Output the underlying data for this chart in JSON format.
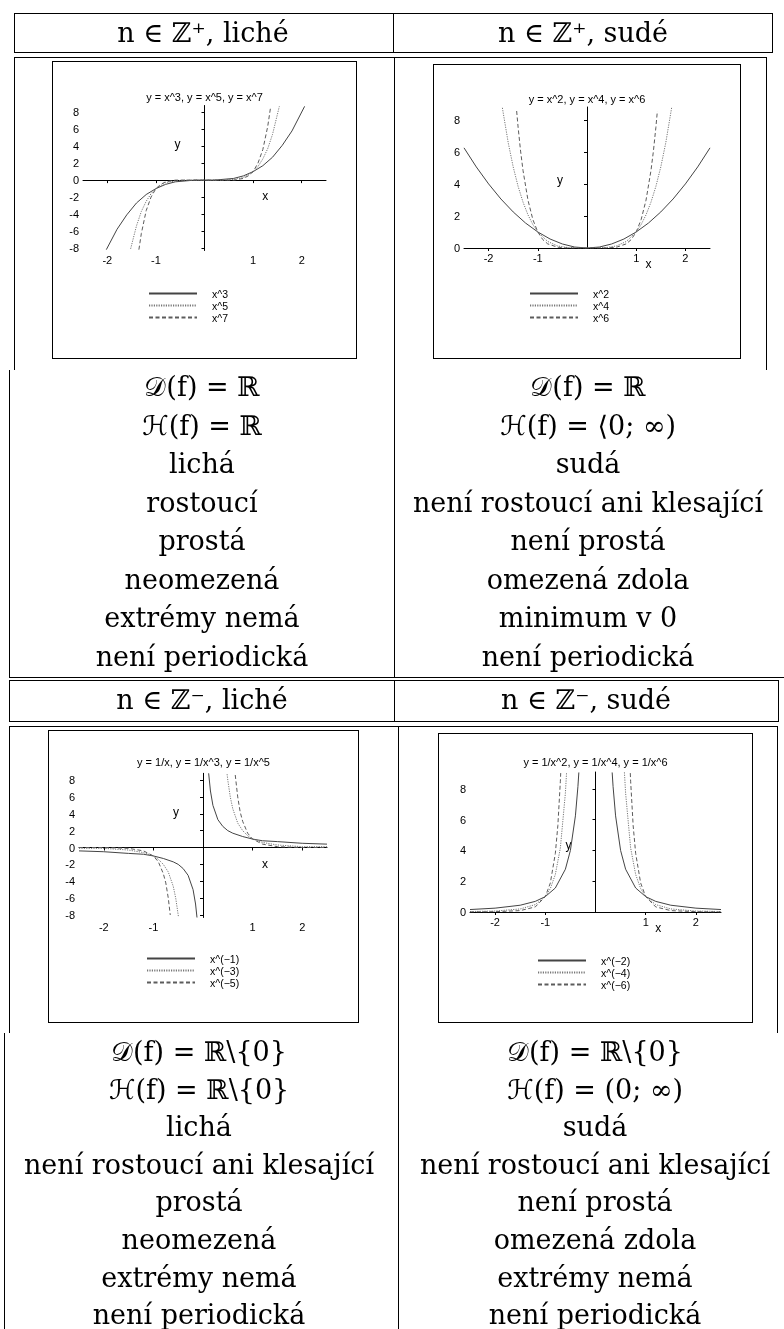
{
  "chart_data": [
    {
      "type": "line",
      "title": "n ∈ ℤ⁺, liché",
      "subtitle": "y = x^3, y = x^5, y = x^7",
      "xlabel": "x",
      "ylabel": "y",
      "xlim": [
        -2.5,
        2.5
      ],
      "ylim": [
        -8.3,
        8.8
      ],
      "xticks": [
        -2,
        -1,
        1,
        2
      ],
      "yticks": [
        -8,
        -6,
        -4,
        -2,
        0,
        2,
        4,
        6,
        8
      ],
      "legend": "bottom",
      "series": [
        {
          "name": "x^3",
          "color": "#444444",
          "line_style": "solid",
          "x": [
            -2.02,
            -1.8,
            -1.6,
            -1.4,
            -1.2,
            -1,
            -0.8,
            -0.6,
            -0.4,
            -0.2,
            0,
            0.2,
            0.4,
            0.6,
            0.8,
            1,
            1.2,
            1.4,
            1.6,
            1.8,
            2.06
          ],
          "values": [
            -8.2,
            -5.8,
            -4.1,
            -2.7,
            -1.7,
            -1,
            -0.5,
            -0.2,
            -0.1,
            0,
            0,
            0,
            0.1,
            0.2,
            0.5,
            1,
            1.7,
            2.7,
            4.1,
            5.8,
            8.7
          ]
        },
        {
          "name": "x^5",
          "color": "#777777",
          "line_style": "dotted",
          "x": [
            -1.52,
            -1.4,
            -1.3,
            -1.2,
            -1.1,
            -1,
            -0.8,
            -0.6,
            -0.4,
            0,
            0.4,
            0.6,
            0.8,
            1,
            1.1,
            1.2,
            1.3,
            1.4,
            1.54
          ],
          "values": [
            -8.1,
            -5.4,
            -3.7,
            -2.5,
            -1.6,
            -1,
            -0.3,
            -0.1,
            0,
            0,
            0,
            0.1,
            0.3,
            1,
            1.6,
            2.5,
            3.7,
            5.4,
            8.7
          ]
        },
        {
          "name": "x^7",
          "color": "#5c5c5c",
          "line_style": "dashed",
          "x": [
            -1.35,
            -1.3,
            -1.2,
            -1.1,
            -1,
            -0.9,
            -0.8,
            -0.6,
            0,
            0.6,
            0.8,
            0.9,
            1,
            1.1,
            1.2,
            1.3,
            1.36
          ],
          "values": [
            -8.2,
            -6.3,
            -3.6,
            -2,
            -1,
            -0.5,
            -0.2,
            0,
            0,
            0,
            0.2,
            0.5,
            1,
            2,
            3.6,
            6.3,
            8.6
          ]
        }
      ],
      "annotations": [
        "𝒟(f) = ℝ",
        "ℋ(f) = ℝ",
        "lichá",
        "rostoucí",
        "prostá",
        "neomezená",
        "extrémy nemá",
        "není periodická"
      ]
    },
    {
      "type": "line",
      "title": "n ∈ ℤ⁺, sudé",
      "subtitle": "y = x^2, y = x^4, y = x^6",
      "xlabel": "x",
      "ylabel": "y",
      "xlim": [
        -2.5,
        2.5
      ],
      "ylim": [
        0,
        8.8
      ],
      "xticks": [
        -2,
        -1,
        1,
        2
      ],
      "yticks": [
        0,
        2,
        4,
        6,
        8
      ],
      "legend": "bottom",
      "series": [
        {
          "name": "x^2",
          "color": "#444444",
          "line_style": "solid",
          "x": [
            -2.5,
            -2.25,
            -2,
            -1.75,
            -1.5,
            -1.25,
            -1,
            -0.75,
            -0.5,
            -0.25,
            0,
            0.25,
            0.5,
            0.75,
            1,
            1.25,
            1.5,
            1.75,
            2,
            2.25,
            2.5
          ],
          "values": [
            6.25,
            5.06,
            4,
            3.06,
            2.25,
            1.56,
            1,
            0.56,
            0.25,
            0.06,
            0,
            0.06,
            0.25,
            0.56,
            1,
            1.56,
            2.25,
            3.06,
            4,
            5.06,
            6.25
          ]
        },
        {
          "name": "x^4",
          "color": "#777777",
          "line_style": "dotted",
          "x": [
            -1.72,
            -1.6,
            -1.5,
            -1.4,
            -1.3,
            -1.2,
            -1.1,
            -1,
            -0.8,
            -0.6,
            -0.4,
            0,
            0.4,
            0.6,
            0.8,
            1,
            1.1,
            1.2,
            1.3,
            1.4,
            1.5,
            1.6,
            1.72
          ],
          "values": [
            8.75,
            6.55,
            5.06,
            3.84,
            2.86,
            2.07,
            1.46,
            1,
            0.41,
            0.13,
            0.03,
            0,
            0.03,
            0.13,
            0.41,
            1,
            1.46,
            2.07,
            2.86,
            3.84,
            5.06,
            6.55,
            8.75
          ]
        },
        {
          "name": "x^6",
          "color": "#5c5c5c",
          "line_style": "dashed",
          "x": [
            -1.43,
            -1.4,
            -1.35,
            -1.3,
            -1.2,
            -1.1,
            -1,
            -0.9,
            -0.8,
            -0.6,
            -0.4,
            0,
            0.4,
            0.6,
            0.8,
            0.9,
            1,
            1.1,
            1.2,
            1.3,
            1.35,
            1.4,
            1.43
          ],
          "values": [
            8.55,
            7.53,
            6.05,
            4.83,
            2.99,
            1.77,
            1,
            0.53,
            0.26,
            0.05,
            0,
            0,
            0,
            0.05,
            0.26,
            0.53,
            1,
            1.77,
            2.99,
            4.83,
            6.05,
            7.53,
            8.55
          ]
        }
      ],
      "annotations": [
        "𝒟(f) = ℝ",
        "ℋ(f) = ⟨0; ∞)",
        "sudá",
        "není rostoucí ani klesající",
        "není prostá",
        "omezená zdola",
        "minimum v 0",
        "není periodická"
      ]
    },
    {
      "type": "line",
      "title": "n ∈ ℤ⁻, liché",
      "subtitle": "y = 1/x, y = 1/x^3, y = 1/x^5",
      "xlabel": "x",
      "ylabel": "y",
      "xlim": [
        -2.5,
        2.5
      ],
      "ylim": [
        -8.3,
        8.8
      ],
      "xticks": [
        -2,
        -1,
        1,
        2
      ],
      "yticks": [
        -8,
        -6,
        -4,
        -2,
        0,
        2,
        4,
        6,
        8
      ],
      "legend": "bottom",
      "series": [
        {
          "name": "x^(−1)",
          "color": "#444444",
          "line_style": "solid",
          "x": [
            -2.5,
            -2,
            -1.5,
            -1.2,
            -1,
            -0.8,
            -0.6,
            -0.5,
            -0.4,
            -0.3,
            -0.2,
            -0.15,
            -0.121,
            0,
            0.114,
            0.15,
            0.2,
            0.3,
            0.4,
            0.5,
            0.6,
            0.8,
            1,
            1.2,
            1.5,
            2,
            2.5
          ],
          "values": [
            -0.4,
            -0.5,
            -0.7,
            -0.8,
            -1,
            -1.3,
            -1.7,
            -2,
            -2.5,
            -3.3,
            -5,
            -6.7,
            -8.3,
            null,
            8.8,
            6.7,
            5,
            3.3,
            2.5,
            2,
            1.7,
            1.3,
            1,
            0.8,
            0.7,
            0.5,
            0.4
          ]
        },
        {
          "name": "x^(−3)",
          "color": "#777777",
          "line_style": "dotted",
          "x": [
            -2.5,
            -2,
            -1.5,
            -1.2,
            -1,
            -0.9,
            -0.8,
            -0.7,
            -0.6,
            -0.55,
            -0.5,
            -0.495,
            0,
            0.486,
            0.5,
            0.55,
            0.6,
            0.7,
            0.8,
            0.9,
            1,
            1.2,
            1.5,
            2,
            2.5
          ],
          "values": [
            -0.1,
            -0.1,
            -0.3,
            -0.6,
            -1,
            -1.4,
            -2,
            -2.9,
            -4.6,
            -6,
            -8,
            -8.2,
            null,
            8.7,
            8,
            6,
            4.6,
            2.9,
            2,
            1.4,
            1,
            0.6,
            0.3,
            0.1,
            0.1
          ]
        },
        {
          "name": "x^(−5)",
          "color": "#5c5c5c",
          "line_style": "dashed",
          "x": [
            -2.5,
            -2,
            -1.5,
            -1.2,
            -1,
            -0.9,
            -0.8,
            -0.75,
            -0.7,
            -0.66,
            0,
            0.65,
            0.7,
            0.75,
            0.8,
            0.9,
            1,
            1.2,
            1.5,
            2,
            2.5
          ],
          "values": [
            0,
            0,
            -0.1,
            -0.4,
            -1,
            -1.7,
            -3.1,
            -4.2,
            -6,
            -8,
            null,
            8.6,
            6,
            4.2,
            3.1,
            1.7,
            1,
            0.4,
            0.1,
            0,
            0
          ]
        }
      ],
      "annotations": [
        "𝒟(f) = ℝ\\{0}",
        "ℋ(f) = ℝ\\{0}",
        "lichá",
        "není rostoucí ani klesající",
        "prostá",
        "neomezená",
        "extrémy nemá",
        "není periodická"
      ]
    },
    {
      "type": "line",
      "title": "n ∈ ℤ⁻, sudé",
      "subtitle": "y = 1/x^2, y = 1/x^4, y = 1/x^6",
      "xlabel": "x",
      "ylabel": "y",
      "xlim": [
        -2.5,
        2.5
      ],
      "ylim": [
        0,
        9.1
      ],
      "xticks": [
        -2,
        -1,
        1,
        2
      ],
      "yticks": [
        0,
        2,
        4,
        6,
        8
      ],
      "legend": "bottom",
      "series": [
        {
          "name": "x^(−2)",
          "color": "#444444",
          "line_style": "solid",
          "x": [
            -2.5,
            -2,
            -1.5,
            -1.2,
            -1,
            -0.8,
            -0.6,
            -0.5,
            -0.4,
            -0.35,
            -0.332,
            0,
            0.332,
            0.35,
            0.4,
            0.5,
            0.6,
            0.8,
            1,
            1.2,
            1.5,
            2,
            2.5
          ],
          "values": [
            0.16,
            0.25,
            0.44,
            0.69,
            1,
            1.56,
            2.78,
            4,
            6.25,
            8.16,
            9.07,
            null,
            9.07,
            8.16,
            6.25,
            4,
            2.78,
            1.56,
            1,
            0.69,
            0.44,
            0.25,
            0.16
          ]
        },
        {
          "name": "x^(−4)",
          "color": "#777777",
          "line_style": "dotted",
          "x": [
            -2.5,
            -2,
            -1.5,
            -1.2,
            -1,
            -0.9,
            -0.8,
            -0.7,
            -0.6,
            -0.576,
            0,
            0.576,
            0.6,
            0.7,
            0.8,
            0.9,
            1,
            1.2,
            1.5,
            2,
            2.5
          ],
          "values": [
            0.03,
            0.06,
            0.2,
            0.48,
            1,
            1.52,
            2.44,
            4.16,
            7.72,
            9.08,
            null,
            9.08,
            7.72,
            4.16,
            2.44,
            1.52,
            1,
            0.48,
            0.2,
            0.06,
            0.03
          ]
        },
        {
          "name": "x^(−6)",
          "color": "#5c5c5c",
          "line_style": "dashed",
          "x": [
            -2.5,
            -2,
            -1.5,
            -1.2,
            -1,
            -0.9,
            -0.8,
            -0.75,
            -0.7,
            -0.693,
            0,
            0.693,
            0.7,
            0.75,
            0.8,
            0.9,
            1,
            1.2,
            1.5,
            2,
            2.5
          ],
          "values": [
            0,
            0.02,
            0.09,
            0.33,
            1,
            1.88,
            3.81,
            5.62,
            8.5,
            9.03,
            null,
            9.03,
            8.5,
            5.62,
            3.81,
            1.88,
            1,
            0.33,
            0.09,
            0.02,
            0
          ]
        }
      ],
      "annotations": [
        "𝒟(f) = ℝ\\{0}",
        "ℋ(f) = (0; ∞)",
        "sudá",
        "není rostoucí ani klesající",
        "není prostá",
        "omezená zdola",
        "extrémy nemá",
        "není periodická"
      ]
    }
  ]
}
